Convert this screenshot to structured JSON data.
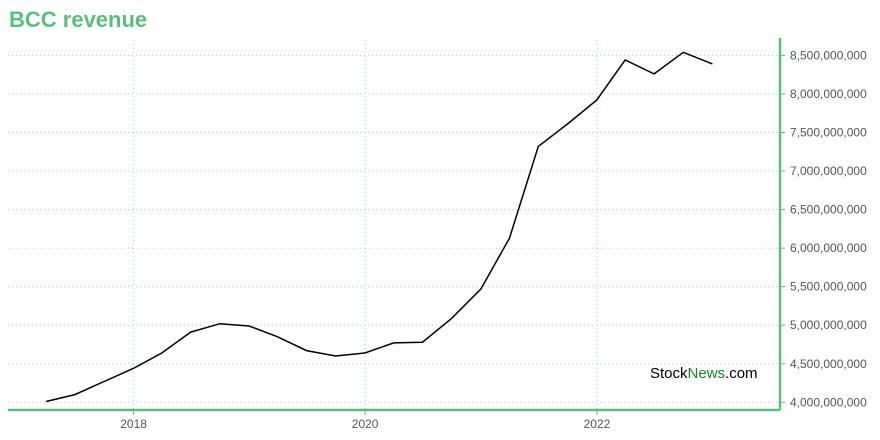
{
  "title": "BCC revenue",
  "watermark": {
    "part1": "Stock",
    "part2": "News",
    "part3": ".com"
  },
  "colors": {
    "accent": "#5cbd7f",
    "line": "#000000",
    "grid": "#9fd9b4"
  },
  "chart_data": {
    "type": "line",
    "title": "BCC revenue",
    "xlabel": "",
    "ylabel": "",
    "grid": true,
    "ylim": [
      3900000000,
      8700000000
    ],
    "xlim": [
      "2016-12-01",
      "2023-08-01"
    ],
    "x_ticks": [
      {
        "date": "2018-01-01",
        "label": "2018"
      },
      {
        "date": "2020-01-01",
        "label": "2020"
      },
      {
        "date": "2022-01-01",
        "label": "2022"
      }
    ],
    "y_ticks": [
      {
        "value": 4000000000,
        "label": "4,000,000,000"
      },
      {
        "value": 4500000000,
        "label": "4,500,000,000"
      },
      {
        "value": 5000000000,
        "label": "5,000,000,000"
      },
      {
        "value": 5500000000,
        "label": "5,500,000,000"
      },
      {
        "value": 6000000000,
        "label": "6,000,000,000"
      },
      {
        "value": 6500000000,
        "label": "6,500,000,000"
      },
      {
        "value": 7000000000,
        "label": "7,000,000,000"
      },
      {
        "value": 7500000000,
        "label": "7,500,000,000"
      },
      {
        "value": 8000000000,
        "label": "8,000,000,000"
      },
      {
        "value": 8500000000,
        "label": "8,500,000,000"
      }
    ],
    "series": [
      {
        "points": [
          [
            "2017-03-31",
            4010000000
          ],
          [
            "2017-06-30",
            4100000000
          ],
          [
            "2017-09-30",
            4270000000
          ],
          [
            "2017-12-31",
            4440000000
          ],
          [
            "2018-03-31",
            4640000000
          ],
          [
            "2018-06-30",
            4910000000
          ],
          [
            "2018-09-30",
            5020000000
          ],
          [
            "2018-12-31",
            4990000000
          ],
          [
            "2019-03-31",
            4850000000
          ],
          [
            "2019-06-30",
            4670000000
          ],
          [
            "2019-09-30",
            4600000000
          ],
          [
            "2019-12-31",
            4640000000
          ],
          [
            "2020-03-31",
            4770000000
          ],
          [
            "2020-06-30",
            4780000000
          ],
          [
            "2020-09-30",
            5090000000
          ],
          [
            "2020-12-31",
            5470000000
          ],
          [
            "2021-03-31",
            6130000000
          ],
          [
            "2021-06-30",
            7320000000
          ],
          [
            "2021-09-30",
            7610000000
          ],
          [
            "2021-12-31",
            7920000000
          ],
          [
            "2022-03-31",
            8440000000
          ],
          [
            "2022-06-30",
            8260000000
          ],
          [
            "2022-09-30",
            8540000000
          ],
          [
            "2022-12-31",
            8390000000
          ]
        ]
      }
    ]
  }
}
